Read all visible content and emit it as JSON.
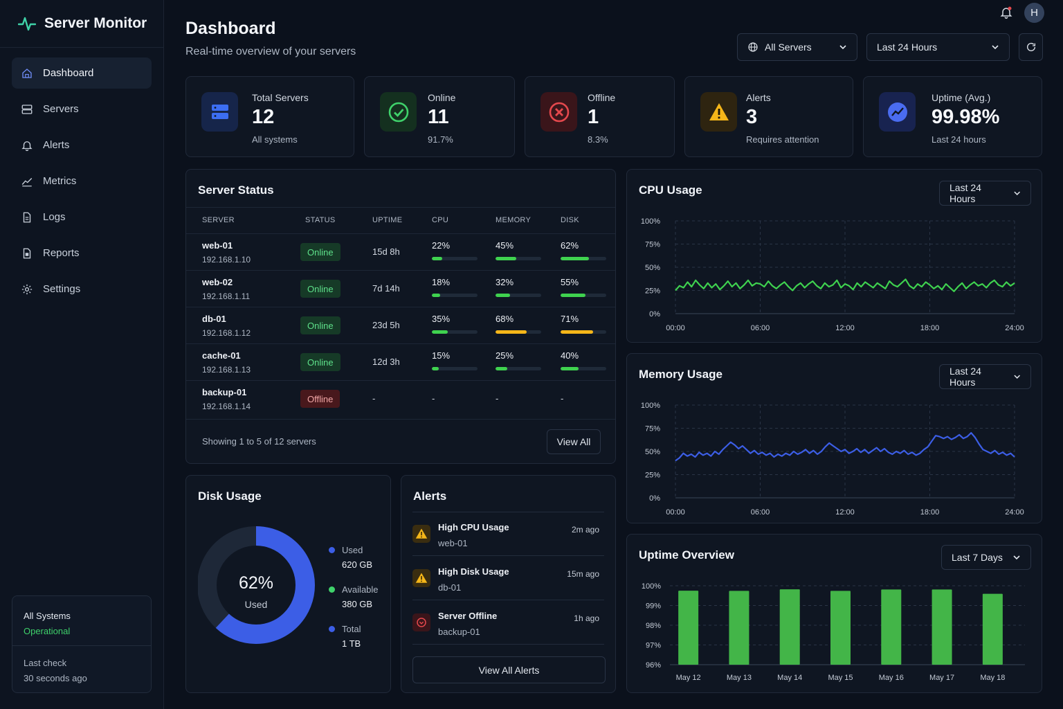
{
  "app": {
    "name": "Server Monitor",
    "accent": "#3fd2a8"
  },
  "nav": [
    {
      "label": "Dashboard",
      "icon": "home-icon",
      "active": true
    },
    {
      "label": "Servers",
      "icon": "server-icon"
    },
    {
      "label": "Alerts",
      "icon": "bell-icon"
    },
    {
      "label": "Metrics",
      "icon": "chart-line-icon"
    },
    {
      "label": "Logs",
      "icon": "file-icon"
    },
    {
      "label": "Reports",
      "icon": "report-icon"
    },
    {
      "label": "Settings",
      "icon": "gear-icon"
    }
  ],
  "system": {
    "label": "All Systems",
    "status": "Operational",
    "check_label": "Last check",
    "check_time": "30 seconds ago"
  },
  "header": {
    "title": "Dashboard",
    "subtitle": "Real-time overview of your servers",
    "server_filter": "All Servers",
    "time_filter": "Last 24 Hours",
    "avatar": "H"
  },
  "stats": [
    {
      "label": "Total Servers",
      "value": "12",
      "sub": "All systems",
      "icon": "server-icon",
      "color": "#3c6ef2"
    },
    {
      "label": "Online",
      "value": "11",
      "sub": "91.7%",
      "icon": "check-circle-icon",
      "color": "#3fd26b"
    },
    {
      "label": "Offline",
      "value": "1",
      "sub": "8.3%",
      "icon": "x-circle-icon",
      "color": "#e5484d"
    },
    {
      "label": "Alerts",
      "value": "3",
      "sub": "Requires attention",
      "icon": "warning-icon",
      "color": "#f5b619"
    },
    {
      "label": "Uptime (Avg.)",
      "value": "99.98%",
      "sub": "Last 24 hours",
      "icon": "trend-up-icon",
      "color": "#4a6cf0"
    }
  ],
  "server_status": {
    "title": "Server Status",
    "columns": [
      "SERVER",
      "STATUS",
      "UPTIME",
      "CPU",
      "MEMORY",
      "DISK"
    ],
    "rows": [
      {
        "name": "web-01",
        "ip": "192.168.1.10",
        "status": "Online",
        "uptime": "15d 8h",
        "cpu": "22%",
        "memory": "45%",
        "disk": "62%",
        "cpu_f": 0.22,
        "mem_f": 0.45,
        "disk_f": 0.62
      },
      {
        "name": "web-02",
        "ip": "192.168.1.11",
        "status": "Online",
        "uptime": "7d 14h",
        "cpu": "18%",
        "memory": "32%",
        "disk": "55%",
        "cpu_f": 0.18,
        "mem_f": 0.32,
        "disk_f": 0.55
      },
      {
        "name": "db-01",
        "ip": "192.168.1.12",
        "status": "Online",
        "uptime": "23d 5h",
        "cpu": "35%",
        "memory": "68%",
        "disk": "71%",
        "cpu_f": 0.35,
        "mem_f": 0.68,
        "disk_f": 0.71
      },
      {
        "name": "cache-01",
        "ip": "192.168.1.13",
        "status": "Online",
        "uptime": "12d 3h",
        "cpu": "15%",
        "memory": "25%",
        "disk": "40%",
        "cpu_f": 0.15,
        "mem_f": 0.25,
        "disk_f": 0.4
      },
      {
        "name": "backup-01",
        "ip": "192.168.1.14",
        "status": "Offline",
        "uptime": "-",
        "cpu": "-",
        "memory": "-",
        "disk": "-"
      }
    ],
    "footer": "Showing 1 to 5 of 12 servers",
    "view_all": "View All"
  },
  "disk": {
    "title": "Disk Usage",
    "percent": "62%",
    "percent_label": "Used",
    "used_fraction": 0.62,
    "legend": [
      {
        "label": "Used",
        "value": "620 GB",
        "color": "#3c5ee6"
      },
      {
        "label": "Available",
        "value": "380 GB",
        "color": "#3fd26b"
      },
      {
        "label": "Total",
        "value": "1 TB",
        "color": "#3c5ee6"
      }
    ]
  },
  "alerts": {
    "title": "Alerts",
    "items": [
      {
        "title": "High CPU Usage",
        "server": "web-01",
        "time": "2m ago",
        "kind": "warning"
      },
      {
        "title": "High Disk Usage",
        "server": "db-01",
        "time": "15m ago",
        "kind": "warning"
      },
      {
        "title": "Server Offline",
        "server": "backup-01",
        "time": "1h ago",
        "kind": "error"
      }
    ],
    "view_all": "View All Alerts"
  },
  "chart_data": [
    {
      "type": "line",
      "title": "CPU Usage",
      "range": "Last 24 Hours",
      "color": "#3fd24f",
      "x_ticks": [
        "00:00",
        "06:00",
        "12:00",
        "18:00",
        "24:00"
      ],
      "y_ticks": [
        "100%",
        "75%",
        "50%",
        "25%",
        "0%"
      ],
      "ylim": [
        0,
        100
      ],
      "values": [
        25,
        30,
        28,
        34,
        29,
        36,
        31,
        27,
        33,
        28,
        32,
        26,
        30,
        35,
        29,
        33,
        27,
        31,
        36,
        30,
        33,
        32,
        29,
        35,
        30,
        27,
        31,
        34,
        29,
        25,
        30,
        33,
        28,
        32,
        35,
        30,
        27,
        33,
        29,
        31,
        36,
        28,
        32,
        30,
        26,
        33,
        29,
        34,
        31,
        28,
        33,
        30,
        27,
        35,
        31,
        29,
        33,
        37,
        30,
        27,
        32,
        29,
        34,
        31,
        27,
        30,
        26,
        32,
        28,
        24,
        29,
        33,
        27,
        31,
        34,
        30,
        32,
        28,
        33,
        36,
        31,
        29,
        34,
        30,
        33
      ]
    },
    {
      "type": "line",
      "title": "Memory Usage",
      "range": "Last 24 Hours",
      "color": "#3c5ee6",
      "x_ticks": [
        "00:00",
        "06:00",
        "12:00",
        "18:00",
        "24:00"
      ],
      "y_ticks": [
        "100%",
        "75%",
        "50%",
        "25%",
        "0%"
      ],
      "ylim": [
        0,
        100
      ],
      "values": [
        40,
        43,
        48,
        45,
        47,
        44,
        49,
        46,
        48,
        45,
        50,
        47,
        52,
        56,
        60,
        57,
        53,
        56,
        52,
        48,
        51,
        47,
        49,
        46,
        48,
        44,
        47,
        45,
        48,
        46,
        50,
        47,
        49,
        52,
        48,
        51,
        47,
        50,
        55,
        59,
        56,
        53,
        50,
        52,
        48,
        50,
        53,
        49,
        52,
        48,
        51,
        54,
        50,
        53,
        49,
        47,
        50,
        48,
        51,
        47,
        49,
        46,
        48,
        52,
        55,
        61,
        67,
        66,
        64,
        66,
        63,
        65,
        68,
        64,
        66,
        70,
        65,
        58,
        52,
        50,
        48,
        51,
        47,
        49,
        46,
        48,
        44
      ]
    },
    {
      "type": "bar",
      "title": "Uptime Overview",
      "range": "Last 7 Days",
      "color": "#43b548",
      "categories": [
        "May 12",
        "May 13",
        "May 14",
        "May 15",
        "May 16",
        "May 17",
        "May 18"
      ],
      "values": [
        99.75,
        99.74,
        99.82,
        99.74,
        99.81,
        99.81,
        99.59
      ],
      "y_ticks": [
        "100%",
        "99%",
        "98%",
        "97%",
        "96%"
      ],
      "ylim": [
        96,
        100
      ]
    }
  ]
}
